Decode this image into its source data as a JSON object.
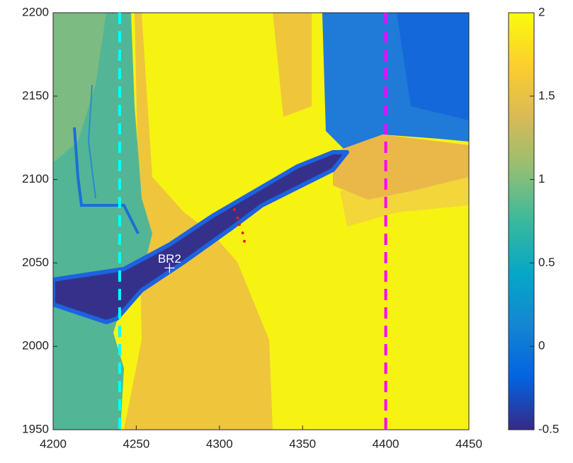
{
  "chart_data": {
    "type": "image",
    "xlim": [
      4200,
      4450
    ],
    "ylim": [
      1950,
      2200
    ],
    "xticks": [
      4200,
      4250,
      4300,
      4350,
      4400,
      4450
    ],
    "yticks": [
      1950,
      2000,
      2050,
      2100,
      2150,
      2200
    ],
    "colorbar": {
      "clim": [
        -0.5,
        2
      ],
      "ticks": [
        -0.5,
        0,
        0.5,
        1,
        1.5,
        2
      ],
      "colormap": [
        "#352a87",
        "#0363e1",
        "#1485d4",
        "#06a7c6",
        "#38b99e",
        "#92bf73",
        "#d9ba56",
        "#fcce2e",
        "#f9fb0e"
      ]
    },
    "vlines": [
      {
        "x": 4240,
        "color": "#00ffff"
      },
      {
        "x": 4400,
        "color": "#ff00ff"
      }
    ],
    "points": {
      "x": [
        4309,
        4311,
        4312,
        4314,
        4315
      ],
      "y": [
        2082,
        2077,
        2073,
        2068,
        2063
      ],
      "color": "#e8201e"
    },
    "marker": {
      "x": 4270,
      "y": 2047,
      "label": "BR2",
      "color": "#ffffff"
    }
  }
}
